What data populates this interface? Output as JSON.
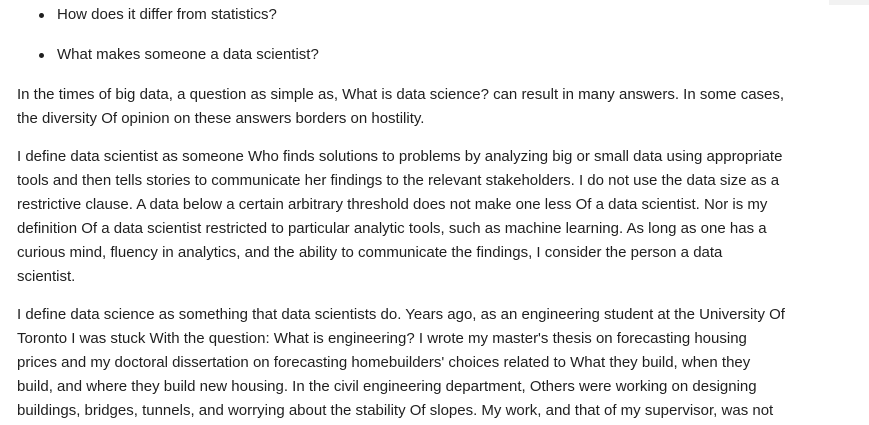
{
  "bullets": [
    "How does it differ from statistics?",
    "What makes someone a data scientist?"
  ],
  "paragraphs": [
    {
      "lines": [
        "In the times of big data, a question as simple as, What is data science? can result in many answers. In some cases,",
        "the diversity Of opinion on these answers borders on hostility."
      ]
    },
    {
      "lines": [
        "I define data scientist as someone Who finds solutions to problems by analyzing big or small data using appropriate",
        "tools and then tells stories to communicate her findings to the relevant stakeholders. I do not use the data size as a",
        "restrictive clause. A data below a certain arbitrary threshold does not make one less Of a data scientist. Nor is my",
        "definition Of a data scientist restricted to particular analytic tools, such as machine learning. As long as one has a",
        "curious mind, fluency in analytics, and the ability to communicate the findings, I consider the person a data",
        "scientist."
      ]
    },
    {
      "lines": [
        "I define data science as something that data scientists do. Years ago, as an engineering student at the University Of",
        "Toronto I was stuck With the question: What is engineering? I wrote my master's thesis on forecasting housing",
        "prices and my doctoral dissertation on forecasting homebuilders' choices related to What they build, when they",
        "build, and where they build new housing. In the civil engineering department, Others were working on designing",
        "buildings, bridges, tunnels, and worrying about the stability Of slopes. My work, and that of my supervisor, was not"
      ]
    }
  ]
}
